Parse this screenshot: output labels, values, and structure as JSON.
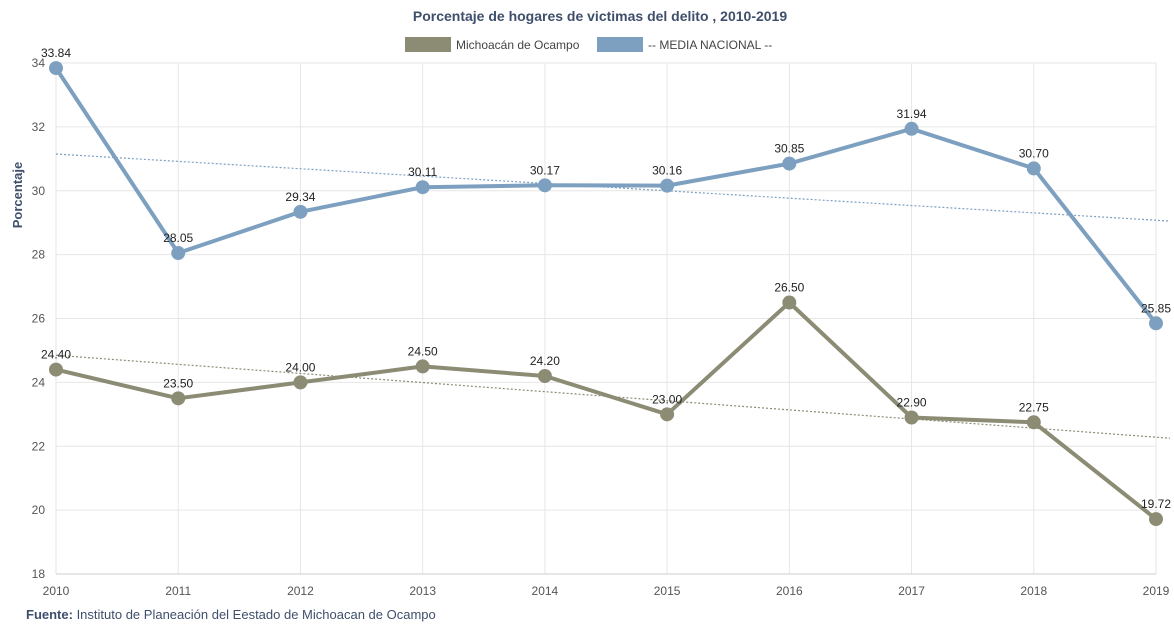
{
  "chart_data": {
    "type": "line",
    "title": "Porcentaje de hogares de victimas del delito , 2010-2019",
    "ylabel": "Porcentaje",
    "xlabel": "",
    "x": [
      "2010",
      "2011",
      "2012",
      "2013",
      "2014",
      "2015",
      "2016",
      "2017",
      "2018",
      "2019"
    ],
    "ylim": [
      18,
      34
    ],
    "yticks": [
      18,
      20,
      22,
      24,
      26,
      28,
      30,
      32,
      34
    ],
    "grid": true,
    "legend_position": "top-center",
    "series": [
      {
        "name": "Michoacán de Ocampo",
        "color": "#8c8c75",
        "values": [
          24.4,
          23.5,
          24.0,
          24.5,
          24.2,
          23.0,
          26.5,
          22.9,
          22.75,
          19.72
        ],
        "labels": [
          "24.40",
          "23.50",
          "24.00",
          "24.50",
          "24.20",
          "23.00",
          "26.50",
          "22.90",
          "22.75",
          "19.72"
        ],
        "trendline": [
          24.85,
          22.25
        ]
      },
      {
        "name": "-- MEDIA NACIONAL --",
        "color": "#7da0c0",
        "values": [
          33.84,
          28.05,
          29.34,
          30.11,
          30.17,
          30.16,
          30.85,
          31.94,
          30.7,
          25.85
        ],
        "labels": [
          "33.84",
          "28.05",
          "29.34",
          "30.11",
          "30.17",
          "30.16",
          "30.85",
          "31.94",
          "30.70",
          "25.85"
        ],
        "trendline": [
          31.15,
          29.05
        ]
      }
    ]
  },
  "source": {
    "label": "Fuente:",
    "text": " Instituto de Planeación del Eestado de Michoacan de Ocampo"
  }
}
